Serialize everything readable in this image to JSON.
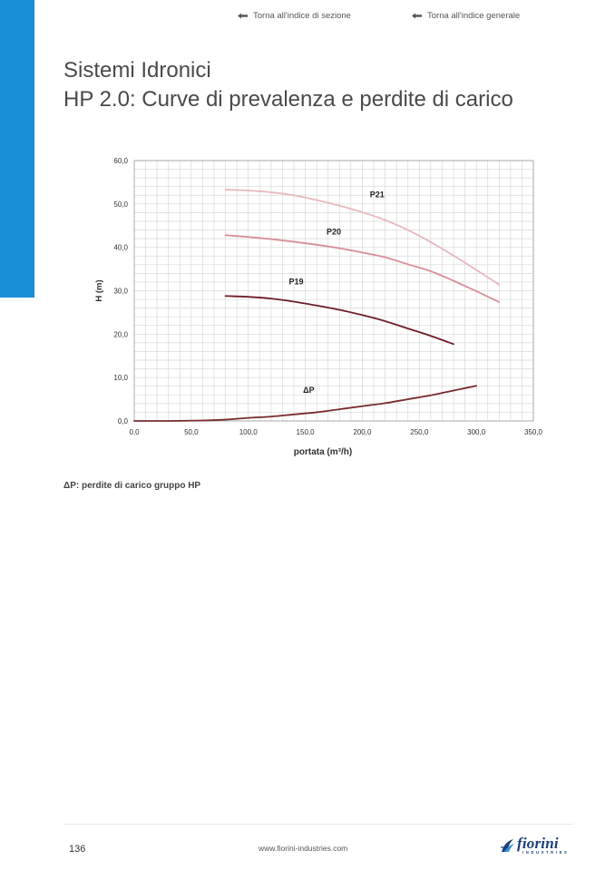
{
  "nav": {
    "section_link": "Torna all'indice di sezione",
    "general_link": "Torna all'indice generale"
  },
  "header": {
    "title": "Sistemi Idronici",
    "subtitle": "HP 2.0: Curve di prevalenza e perdite di carico"
  },
  "chart_data": {
    "type": "line",
    "xlabel": "portata (m³/h)",
    "ylabel": "H (m)",
    "xlim": [
      0,
      350
    ],
    "ylim": [
      0,
      60
    ],
    "xticks": [
      0,
      50,
      100,
      150,
      200,
      250,
      300,
      350
    ],
    "yticks": [
      0,
      10,
      20,
      30,
      40,
      50,
      60
    ],
    "xtick_labels": [
      "0,0",
      "50,0",
      "100,0",
      "150,0",
      "200,0",
      "250,0",
      "300,0",
      "350,0"
    ],
    "ytick_labels": [
      "0,0",
      "10,0",
      "20,0",
      "30,0",
      "40,0",
      "50,0",
      "60,0"
    ],
    "grid": true,
    "series": [
      {
        "name": "P21",
        "color": "#e6b8bc",
        "x": [
          80,
          100,
          120,
          140,
          160,
          180,
          200,
          220,
          240,
          260,
          280,
          300,
          320
        ],
        "y": [
          53.3,
          53.1,
          52.7,
          52.0,
          50.9,
          49.6,
          48.1,
          46.3,
          44.0,
          41.2,
          38.1,
          34.8,
          31.4
        ]
      },
      {
        "name": "P20",
        "color": "#d88f98",
        "x": [
          80,
          100,
          120,
          140,
          160,
          180,
          200,
          220,
          240,
          260,
          280,
          300,
          320
        ],
        "y": [
          42.8,
          42.4,
          41.9,
          41.3,
          40.6,
          39.8,
          38.8,
          37.7,
          36.1,
          34.5,
          32.3,
          29.9,
          27.4
        ]
      },
      {
        "name": "P19",
        "color": "#6e1d2a",
        "x": [
          80,
          100,
          120,
          140,
          160,
          180,
          200,
          220,
          240,
          260,
          280
        ],
        "y": [
          28.8,
          28.6,
          28.2,
          27.5,
          26.6,
          25.6,
          24.4,
          23.0,
          21.3,
          19.6,
          17.7
        ]
      },
      {
        "name": "ΔP",
        "color": "#7a2a2e",
        "x": [
          0,
          30,
          60,
          80,
          100,
          120,
          140,
          160,
          180,
          200,
          220,
          240,
          260,
          280,
          300
        ],
        "y": [
          0,
          0,
          0.1,
          0.3,
          0.7,
          1.0,
          1.5,
          2.0,
          2.7,
          3.4,
          4.1,
          5.0,
          5.9,
          7.0,
          8.1
        ]
      }
    ],
    "labels": [
      {
        "text": "P21",
        "x": 213,
        "y": 51.5
      },
      {
        "text": "P20",
        "x": 175,
        "y": 43.0
      },
      {
        "text": "P19",
        "x": 142,
        "y": 31.5
      },
      {
        "text": "ΔP",
        "x": 153,
        "y": 6.5
      }
    ]
  },
  "note": "ΔP: perdite di carico gruppo HP",
  "footer": {
    "page_number": "136",
    "website": "www.fiorini-industries.com",
    "logo_text": "fiorini",
    "logo_subtext": "INDUSTRIES"
  }
}
